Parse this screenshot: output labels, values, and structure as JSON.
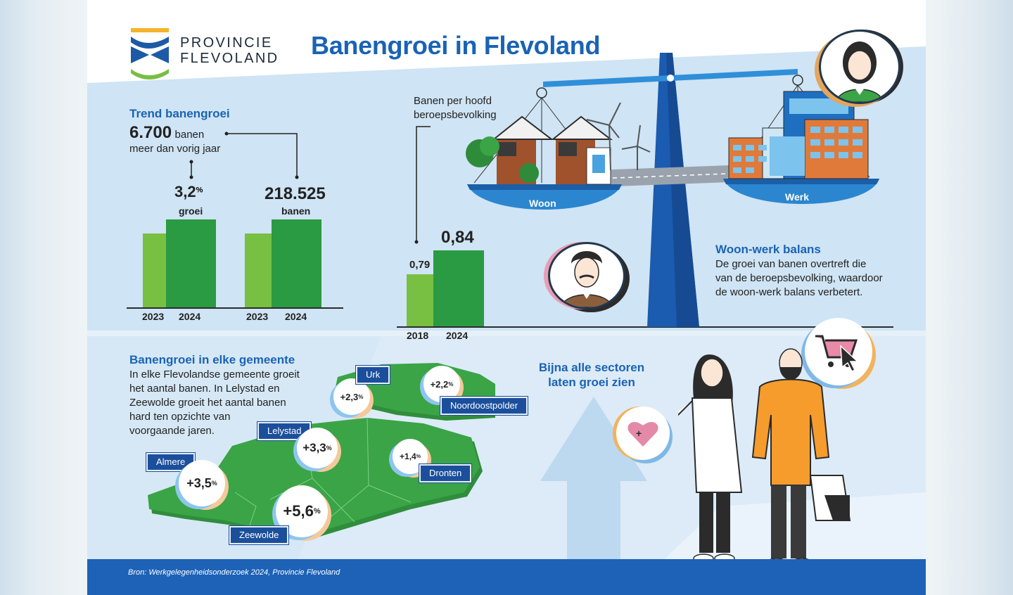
{
  "header": {
    "logo_line1": "PROVINCIE",
    "logo_line2": "FLEVOLAND",
    "title": "Banengroei in Flevoland"
  },
  "trend": {
    "heading": "Trend banengroei",
    "big_value": "6.700",
    "big_suffix": "banen",
    "subtext": "meer dan vorig jaar",
    "growth_value": "3,2",
    "growth_unit": "%",
    "growth_label": "groei",
    "jobs_value": "218.525",
    "jobs_label": "banen",
    "years": [
      "2023",
      "2024",
      "2023",
      "2024"
    ]
  },
  "ratio": {
    "label_line1": "Banen per hoofd",
    "label_line2": "beroepsbevolking",
    "value_2018": "0,79",
    "value_2024": "0,84",
    "years": [
      "2018",
      "2024"
    ]
  },
  "scale": {
    "left_label": "Woon",
    "right_label": "Werk"
  },
  "balance": {
    "heading": "Woon-werk balans",
    "line1": "De groei van banen overtreft die",
    "line2": "van de beroepsbevolking, waardoor",
    "line3": "de woon-werk balans verbetert."
  },
  "municipalities": {
    "heading": "Banengroei in elke gemeente",
    "line1": "In elke Flevolandse gemeente groeit",
    "line2": "het aantal banen. In Lelystad en",
    "line3": "Zeewolde groeit het aantal banen",
    "line4": "hard ten opzichte van",
    "line5": "voorgaande jaren.",
    "items": [
      {
        "name": "Urk",
        "value": "+2,3",
        "unit": "%"
      },
      {
        "name": "Noordoostpolder",
        "value": "+2,2",
        "unit": "%"
      },
      {
        "name": "Lelystad",
        "value": "+3,3",
        "unit": "%"
      },
      {
        "name": "Dronten",
        "value": "+1,4",
        "unit": "%"
      },
      {
        "name": "Almere",
        "value": "+3,5",
        "unit": "%"
      },
      {
        "name": "Zeewolde",
        "value": "+5,6",
        "unit": "%"
      }
    ]
  },
  "sectors": {
    "line1": "Bijna alle sectoren",
    "line2": "laten groei zien"
  },
  "footer": {
    "source": "Bron: Werkgelegenheidsonderzoek 2024, Provincie Flevoland"
  },
  "colors": {
    "brand_blue": "#1a63b4",
    "bar_light": "#77c042",
    "bar_dark": "#2a9a43",
    "map_green": "#3aa447",
    "tag_blue": "#1b4f9c"
  },
  "chart_data": [
    {
      "type": "bar",
      "categories": [
        "2023",
        "2024"
      ],
      "values": [
        3.1,
        3.2
      ],
      "ylabel": "",
      "title": ""
    },
    {
      "type": "bar",
      "categories": [
        "2023",
        "2024"
      ],
      "values": [
        211825,
        218525
      ],
      "title": ""
    },
    {
      "type": "bar",
      "categories": [
        "2018",
        "2024"
      ],
      "values": [
        0.79,
        0.84
      ],
      "title": ""
    }
  ]
}
